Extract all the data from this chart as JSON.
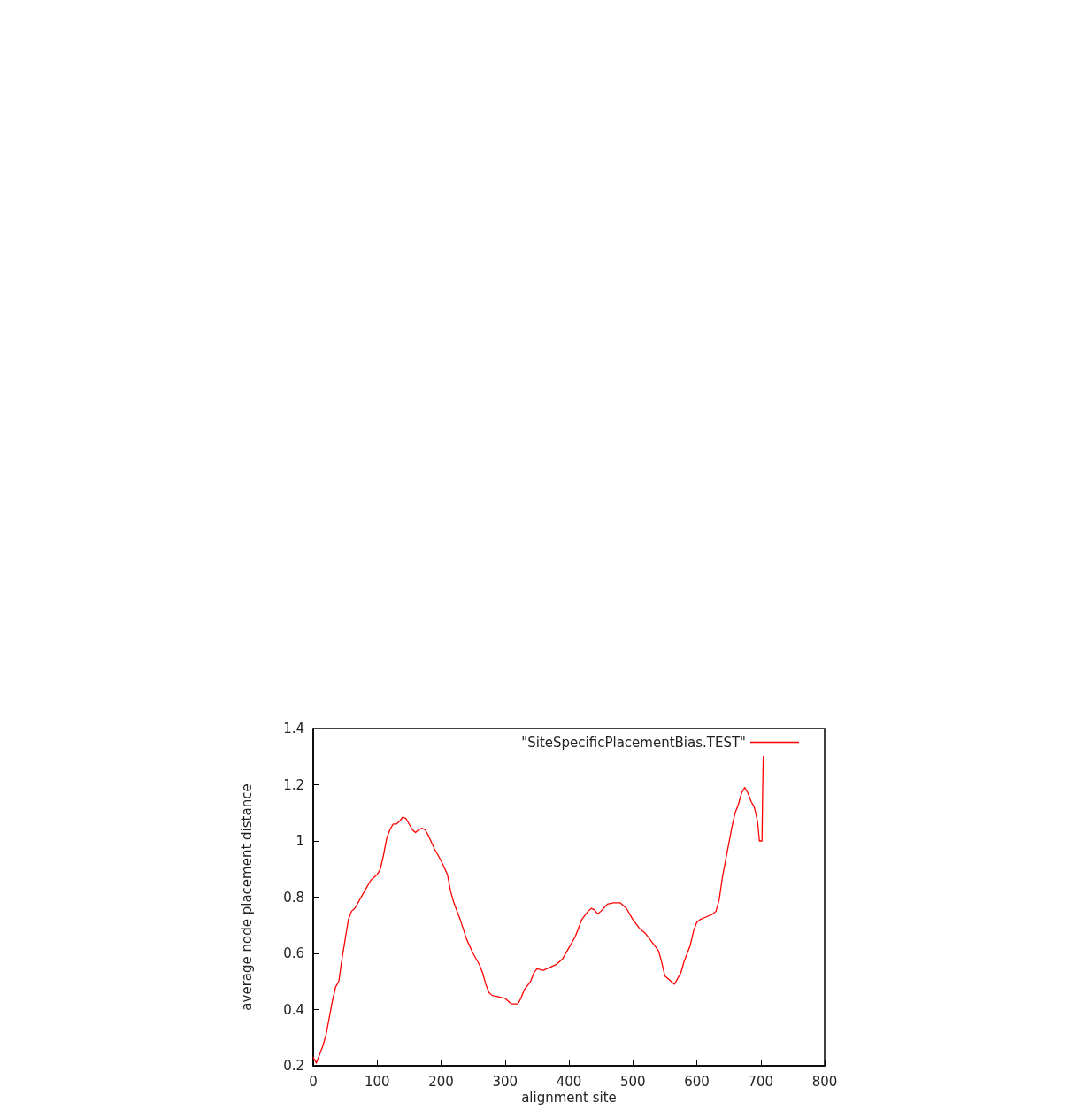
{
  "chart_data": {
    "type": "line",
    "xlabel": "alignment site",
    "ylabel": "average node placement distance",
    "xlim": [
      0,
      800
    ],
    "xticks": [
      0,
      100,
      200,
      300,
      400,
      500,
      600,
      700,
      800
    ],
    "ylim": [
      0.2,
      1.4
    ],
    "yticks": [
      0.2,
      0.4,
      0.6,
      0.8,
      1,
      1.2,
      1.4
    ],
    "grid": false,
    "legend": "top right",
    "marker": "none",
    "line_style": "solid",
    "series": [
      {
        "name": "\"SiteSpecificPlacementBias.TEST\"",
        "color": "#ff0000",
        "x": [
          0,
          5,
          10,
          15,
          20,
          25,
          30,
          35,
          40,
          45,
          50,
          55,
          60,
          65,
          70,
          80,
          90,
          100,
          105,
          110,
          115,
          120,
          125,
          130,
          135,
          140,
          145,
          150,
          155,
          160,
          165,
          170,
          175,
          180,
          190,
          200,
          210,
          215,
          220,
          230,
          240,
          250,
          260,
          265,
          270,
          275,
          280,
          290,
          300,
          305,
          310,
          320,
          325,
          330,
          340,
          345,
          350,
          360,
          370,
          380,
          390,
          400,
          410,
          420,
          430,
          435,
          440,
          445,
          450,
          460,
          470,
          480,
          490,
          500,
          510,
          520,
          530,
          540,
          545,
          550,
          560,
          565,
          570,
          575,
          580,
          590,
          595,
          600,
          605,
          615,
          625,
          630,
          635,
          640,
          645,
          650,
          655,
          660,
          665,
          670,
          675,
          680,
          685,
          690,
          695,
          698,
          702,
          703,
          704
        ],
        "values": [
          0.23,
          0.21,
          0.24,
          0.27,
          0.31,
          0.37,
          0.43,
          0.48,
          0.5,
          0.58,
          0.65,
          0.72,
          0.75,
          0.76,
          0.78,
          0.82,
          0.86,
          0.88,
          0.9,
          0.95,
          1.01,
          1.04,
          1.06,
          1.06,
          1.07,
          1.085,
          1.08,
          1.06,
          1.04,
          1.03,
          1.04,
          1.045,
          1.04,
          1.02,
          0.97,
          0.93,
          0.88,
          0.82,
          0.78,
          0.72,
          0.65,
          0.6,
          0.56,
          0.53,
          0.49,
          0.46,
          0.45,
          0.445,
          0.44,
          0.43,
          0.42,
          0.42,
          0.44,
          0.47,
          0.5,
          0.53,
          0.545,
          0.54,
          0.55,
          0.56,
          0.58,
          0.62,
          0.66,
          0.72,
          0.75,
          0.76,
          0.755,
          0.74,
          0.75,
          0.775,
          0.78,
          0.78,
          0.76,
          0.72,
          0.69,
          0.67,
          0.64,
          0.61,
          0.57,
          0.52,
          0.5,
          0.49,
          0.51,
          0.53,
          0.57,
          0.63,
          0.68,
          0.71,
          0.72,
          0.73,
          0.74,
          0.75,
          0.79,
          0.87,
          0.93,
          0.99,
          1.05,
          1.1,
          1.13,
          1.17,
          1.19,
          1.17,
          1.14,
          1.12,
          1.07,
          1.0,
          1.0,
          1.17,
          1.3
        ]
      }
    ]
  }
}
